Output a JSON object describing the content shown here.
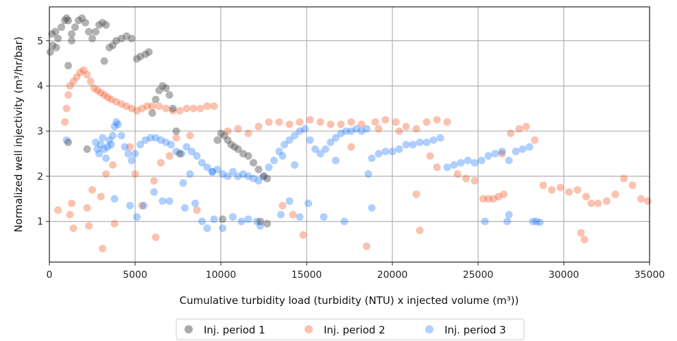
{
  "chart_data": {
    "type": "scatter",
    "xlabel": "Cumulative turbidity load (turbidity (NTU) x injected volume (m³))",
    "ylabel": "Normalized well injectivity (m³/hr/bar)",
    "xlim": [
      0,
      35000
    ],
    "ylim": [
      0.1,
      5.75
    ],
    "xticks": [
      "0",
      "5000",
      "10000",
      "15000",
      "20000",
      "25000",
      "30000",
      "35000"
    ],
    "yticks": [
      "1",
      "2",
      "3",
      "4",
      "5"
    ],
    "grid": true,
    "legend_position": "bottom-center",
    "series": [
      {
        "name": "Inj. period 1",
        "color": "#555555",
        "opacity": 0.45,
        "points": [
          [
            50,
            4.75
          ],
          [
            150,
            5.15
          ],
          [
            200,
            4.9
          ],
          [
            350,
            5.2
          ],
          [
            500,
            5.05
          ],
          [
            700,
            5.3
          ],
          [
            900,
            5.45
          ],
          [
            1000,
            5.5
          ],
          [
            1100,
            5.45
          ],
          [
            1300,
            5.0
          ],
          [
            1500,
            5.3
          ],
          [
            1700,
            5.45
          ],
          [
            1900,
            5.5
          ],
          [
            2100,
            5.4
          ],
          [
            2300,
            5.2
          ],
          [
            2500,
            5.05
          ],
          [
            2700,
            5.2
          ],
          [
            2900,
            5.35
          ],
          [
            3100,
            5.4
          ],
          [
            3300,
            5.35
          ],
          [
            3500,
            4.85
          ],
          [
            3700,
            4.9
          ],
          [
            3900,
            5.0
          ],
          [
            4200,
            5.05
          ],
          [
            4500,
            5.1
          ],
          [
            4800,
            5.05
          ],
          [
            5100,
            4.6
          ],
          [
            5300,
            4.65
          ],
          [
            5600,
            4.7
          ],
          [
            5800,
            4.75
          ],
          [
            6000,
            3.4
          ],
          [
            6200,
            3.7
          ],
          [
            6400,
            3.9
          ],
          [
            6600,
            4.0
          ],
          [
            6800,
            3.95
          ],
          [
            7000,
            3.8
          ],
          [
            7200,
            3.5
          ],
          [
            7400,
            3.0
          ],
          [
            7600,
            2.5
          ],
          [
            9800,
            2.8
          ],
          [
            10000,
            2.95
          ],
          [
            10200,
            2.9
          ],
          [
            10400,
            2.8
          ],
          [
            10600,
            2.7
          ],
          [
            10800,
            2.65
          ],
          [
            11000,
            2.6
          ],
          [
            11300,
            2.5
          ],
          [
            11600,
            2.45
          ],
          [
            11900,
            2.3
          ],
          [
            12200,
            2.15
          ],
          [
            12500,
            2.0
          ],
          [
            12700,
            1.95
          ],
          [
            400,
            4.85
          ],
          [
            1100,
            4.45
          ],
          [
            1300,
            5.15
          ],
          [
            3200,
            4.55
          ],
          [
            1100,
            2.75
          ],
          [
            2200,
            2.6
          ],
          [
            10100,
            1.05
          ],
          [
            12300,
            1.0
          ],
          [
            12700,
            0.95
          ]
        ]
      },
      {
        "name": "Inj. period 2",
        "color": "#f4511e",
        "opacity": 0.35,
        "points": [
          [
            900,
            3.2
          ],
          [
            1000,
            3.5
          ],
          [
            1100,
            3.8
          ],
          [
            1200,
            4.0
          ],
          [
            1400,
            4.1
          ],
          [
            1600,
            4.2
          ],
          [
            1800,
            4.3
          ],
          [
            2000,
            4.35
          ],
          [
            2200,
            4.25
          ],
          [
            2400,
            4.1
          ],
          [
            2600,
            3.95
          ],
          [
            2800,
            3.9
          ],
          [
            3000,
            3.85
          ],
          [
            3200,
            3.8
          ],
          [
            3400,
            3.75
          ],
          [
            3600,
            3.7
          ],
          [
            3900,
            3.65
          ],
          [
            4200,
            3.6
          ],
          [
            4500,
            3.55
          ],
          [
            4800,
            3.5
          ],
          [
            5100,
            3.45
          ],
          [
            5400,
            3.5
          ],
          [
            5700,
            3.55
          ],
          [
            6000,
            3.55
          ],
          [
            6400,
            3.55
          ],
          [
            6800,
            3.5
          ],
          [
            7200,
            3.45
          ],
          [
            7600,
            3.45
          ],
          [
            8000,
            3.5
          ],
          [
            8400,
            3.5
          ],
          [
            8800,
            3.5
          ],
          [
            9200,
            3.55
          ],
          [
            9600,
            3.55
          ],
          [
            10400,
            3.0
          ],
          [
            11000,
            3.05
          ],
          [
            11600,
            2.95
          ],
          [
            12200,
            3.1
          ],
          [
            12800,
            3.2
          ],
          [
            13400,
            3.2
          ],
          [
            14000,
            3.15
          ],
          [
            14600,
            3.2
          ],
          [
            15200,
            3.25
          ],
          [
            15800,
            3.2
          ],
          [
            16400,
            3.15
          ],
          [
            17000,
            3.15
          ],
          [
            17600,
            3.2
          ],
          [
            18200,
            3.15
          ],
          [
            19000,
            3.2
          ],
          [
            19600,
            3.25
          ],
          [
            20200,
            3.2
          ],
          [
            20800,
            3.1
          ],
          [
            21400,
            3.05
          ],
          [
            22000,
            3.2
          ],
          [
            22600,
            3.25
          ],
          [
            23200,
            3.2
          ],
          [
            23800,
            2.05
          ],
          [
            24300,
            1.95
          ],
          [
            24800,
            1.9
          ],
          [
            25300,
            1.5
          ],
          [
            25600,
            1.5
          ],
          [
            25900,
            1.5
          ],
          [
            26200,
            1.55
          ],
          [
            26500,
            1.6
          ],
          [
            26900,
            2.95
          ],
          [
            27400,
            3.05
          ],
          [
            27800,
            3.1
          ],
          [
            28300,
            2.8
          ],
          [
            28800,
            1.8
          ],
          [
            29300,
            1.7
          ],
          [
            29800,
            1.75
          ],
          [
            30300,
            1.65
          ],
          [
            30800,
            1.7
          ],
          [
            31300,
            1.55
          ],
          [
            31600,
            1.4
          ],
          [
            32000,
            1.4
          ],
          [
            32500,
            1.45
          ],
          [
            33000,
            1.6
          ],
          [
            33500,
            1.95
          ],
          [
            34000,
            1.8
          ],
          [
            34500,
            1.5
          ],
          [
            34900,
            1.45
          ],
          [
            500,
            1.25
          ],
          [
            1200,
            1.15
          ],
          [
            1400,
            0.85
          ],
          [
            2200,
            1.3
          ],
          [
            2300,
            0.9
          ],
          [
            3000,
            1.55
          ],
          [
            3100,
            0.4
          ],
          [
            3800,
            0.95
          ],
          [
            4700,
            2.65
          ],
          [
            5400,
            1.35
          ],
          [
            6200,
            0.65
          ],
          [
            6500,
            2.3
          ],
          [
            7400,
            2.85
          ],
          [
            8200,
            2.9
          ],
          [
            1300,
            1.4
          ],
          [
            2500,
            1.7
          ],
          [
            3300,
            2.05
          ],
          [
            3700,
            2.25
          ],
          [
            5000,
            2.05
          ],
          [
            6100,
            1.9
          ],
          [
            7000,
            2.45
          ],
          [
            8600,
            1.25
          ],
          [
            14200,
            1.15
          ],
          [
            14800,
            0.7
          ],
          [
            13600,
            1.35
          ],
          [
            17600,
            2.65
          ],
          [
            18500,
            0.45
          ],
          [
            19200,
            3.05
          ],
          [
            20400,
            3.0
          ],
          [
            21400,
            1.6
          ],
          [
            21600,
            0.8
          ],
          [
            22200,
            2.45
          ],
          [
            22600,
            2.2
          ],
          [
            26400,
            2.5
          ],
          [
            31000,
            0.75
          ],
          [
            31200,
            0.6
          ]
        ]
      },
      {
        "name": "Inj. period 3",
        "color": "#1976ff",
        "opacity": 0.35,
        "points": [
          [
            2700,
            2.75
          ],
          [
            2800,
            2.6
          ],
          [
            2900,
            2.5
          ],
          [
            3000,
            2.7
          ],
          [
            3100,
            2.85
          ],
          [
            3200,
            2.6
          ],
          [
            3300,
            2.4
          ],
          [
            3400,
            2.65
          ],
          [
            3500,
            2.8
          ],
          [
            3600,
            2.7
          ],
          [
            3700,
            2.9
          ],
          [
            3800,
            3.1
          ],
          [
            3900,
            3.2
          ],
          [
            4000,
            3.15
          ],
          [
            4200,
            2.9
          ],
          [
            4400,
            2.65
          ],
          [
            4600,
            2.5
          ],
          [
            4800,
            2.35
          ],
          [
            5000,
            2.5
          ],
          [
            5300,
            2.7
          ],
          [
            5600,
            2.8
          ],
          [
            5900,
            2.85
          ],
          [
            6200,
            2.85
          ],
          [
            6500,
            2.8
          ],
          [
            6800,
            2.75
          ],
          [
            7100,
            2.7
          ],
          [
            7400,
            2.55
          ],
          [
            7700,
            2.5
          ],
          [
            8000,
            2.65
          ],
          [
            8300,
            2.55
          ],
          [
            8600,
            2.45
          ],
          [
            8900,
            2.3
          ],
          [
            9200,
            2.2
          ],
          [
            9500,
            2.1
          ],
          [
            9800,
            2.15
          ],
          [
            10100,
            2.05
          ],
          [
            10400,
            2.0
          ],
          [
            10700,
            2.1
          ],
          [
            11000,
            2.0
          ],
          [
            11300,
            2.05
          ],
          [
            11600,
            2.0
          ],
          [
            11900,
            1.95
          ],
          [
            12200,
            1.9
          ],
          [
            12500,
            2.0
          ],
          [
            12800,
            2.2
          ],
          [
            13100,
            2.35
          ],
          [
            13400,
            2.55
          ],
          [
            13700,
            2.7
          ],
          [
            14000,
            2.8
          ],
          [
            14300,
            2.9
          ],
          [
            14600,
            3.0
          ],
          [
            14900,
            3.05
          ],
          [
            15200,
            2.8
          ],
          [
            15500,
            2.6
          ],
          [
            15800,
            2.5
          ],
          [
            16100,
            2.6
          ],
          [
            16400,
            2.75
          ],
          [
            16700,
            2.85
          ],
          [
            17000,
            2.95
          ],
          [
            17300,
            3.0
          ],
          [
            17600,
            3.0
          ],
          [
            17900,
            3.05
          ],
          [
            18200,
            3.0
          ],
          [
            18500,
            3.05
          ],
          [
            18800,
            2.4
          ],
          [
            19200,
            2.5
          ],
          [
            19600,
            2.55
          ],
          [
            20000,
            2.55
          ],
          [
            20400,
            2.6
          ],
          [
            20800,
            2.7
          ],
          [
            21200,
            2.7
          ],
          [
            21600,
            2.75
          ],
          [
            22000,
            2.75
          ],
          [
            22400,
            2.8
          ],
          [
            22800,
            2.85
          ],
          [
            23200,
            2.2
          ],
          [
            23600,
            2.25
          ],
          [
            24000,
            2.3
          ],
          [
            24400,
            2.35
          ],
          [
            24800,
            2.3
          ],
          [
            25200,
            2.35
          ],
          [
            25600,
            2.45
          ],
          [
            26000,
            2.5
          ],
          [
            26400,
            2.55
          ],
          [
            26800,
            2.35
          ],
          [
            27200,
            2.55
          ],
          [
            27600,
            2.6
          ],
          [
            28000,
            2.65
          ],
          [
            28200,
            1.0
          ],
          [
            28400,
            1.0
          ],
          [
            28600,
            0.98
          ],
          [
            1000,
            2.8
          ],
          [
            3800,
            1.5
          ],
          [
            4700,
            1.35
          ],
          [
            5100,
            1.1
          ],
          [
            5500,
            1.35
          ],
          [
            6100,
            1.65
          ],
          [
            6600,
            1.45
          ],
          [
            7000,
            1.45
          ],
          [
            7900,
            1.3
          ],
          [
            8500,
            1.4
          ],
          [
            8900,
            1.0
          ],
          [
            9200,
            0.85
          ],
          [
            9600,
            1.05
          ],
          [
            10100,
            0.85
          ],
          [
            10700,
            1.1
          ],
          [
            11200,
            1.0
          ],
          [
            11600,
            1.05
          ],
          [
            12100,
            1.0
          ],
          [
            12300,
            0.9
          ],
          [
            13500,
            1.15
          ],
          [
            14000,
            1.45
          ],
          [
            14600,
            1.1
          ],
          [
            15100,
            1.4
          ],
          [
            16000,
            1.1
          ],
          [
            17200,
            1.0
          ],
          [
            18800,
            1.3
          ],
          [
            25400,
            1.0
          ],
          [
            26700,
            1.0
          ],
          [
            26800,
            1.15
          ],
          [
            7800,
            1.85
          ],
          [
            8200,
            2.05
          ],
          [
            9500,
            2.1
          ],
          [
            13600,
            2.45
          ],
          [
            14300,
            2.25
          ],
          [
            16700,
            2.35
          ],
          [
            18600,
            2.05
          ]
        ]
      }
    ]
  }
}
